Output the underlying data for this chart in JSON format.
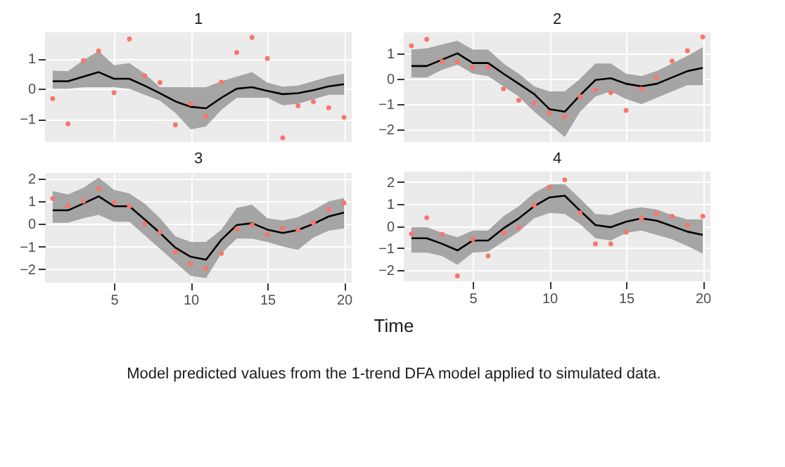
{
  "chart_data": [
    {
      "type": "line",
      "title": "1",
      "x": [
        1,
        2,
        3,
        4,
        5,
        6,
        7,
        8,
        9,
        10,
        11,
        12,
        13,
        14,
        15,
        16,
        17,
        18,
        19,
        20
      ],
      "xlim": [
        0.5,
        20.5
      ],
      "xticks": [
        5,
        10,
        15,
        20
      ],
      "ylim": [
        -1.77,
        1.87
      ],
      "yticks": [
        -1,
        0,
        1
      ],
      "grid": true,
      "tick_labels": "y",
      "series": [
        {
          "color": "#000000",
          "values": [
            0.25,
            0.25,
            0.4,
            0.55,
            0.33,
            0.33,
            0.1,
            -0.15,
            -0.42,
            -0.6,
            -0.65,
            -0.3,
            0,
            0.05,
            -0.07,
            -0.18,
            -0.15,
            -0.05,
            0.08,
            0.15
          ],
          "lower": [
            0,
            0,
            0.05,
            0.05,
            0.05,
            0,
            -0.2,
            -0.4,
            -0.8,
            -1.35,
            -1.25,
            -0.7,
            -0.3,
            -0.3,
            -0.3,
            -0.55,
            -0.5,
            -0.35,
            -0.2,
            -0.2
          ],
          "upper": [
            0.6,
            0.58,
            0.95,
            1.25,
            0.78,
            0.85,
            0.5,
            0.05,
            0.05,
            0.05,
            0.05,
            0.25,
            0.4,
            0.55,
            0.2,
            0.07,
            0.1,
            0.25,
            0.4,
            0.5
          ]
        },
        {
          "type": "scatter",
          "color": "#f8766d",
          "values": [
            -0.33,
            -1.17,
            0.93,
            1.25,
            -0.13,
            1.65,
            0.43,
            0.2,
            -1.2,
            -0.5,
            -0.92,
            0.22,
            1.2,
            1.7,
            1.0,
            -1.63,
            -0.57,
            -0.43,
            -0.63,
            -0.95
          ]
        }
      ]
    },
    {
      "type": "line",
      "title": "2",
      "x": [
        1,
        2,
        3,
        4,
        5,
        6,
        7,
        8,
        9,
        10,
        11,
        12,
        13,
        14,
        15,
        16,
        17,
        18,
        19,
        20
      ],
      "xlim": [
        0.5,
        20.5
      ],
      "xticks": [
        5,
        10,
        15,
        20
      ],
      "ylim": [
        -2.5,
        1.83
      ],
      "yticks": [
        -2,
        -1,
        0,
        1
      ],
      "grid": true,
      "tick_labels": "y",
      "series": [
        {
          "color": "#000000",
          "values": [
            0.5,
            0.5,
            0.75,
            1.0,
            0.62,
            0.62,
            0.2,
            -0.2,
            -0.6,
            -1.2,
            -1.3,
            -0.65,
            -0.05,
            0.02,
            -0.2,
            -0.3,
            -0.2,
            0.05,
            0.3,
            0.43
          ],
          "lower": [
            0.05,
            0.05,
            0.35,
            0.55,
            0.2,
            0.1,
            -0.3,
            -0.7,
            -1.3,
            -1.8,
            -2.3,
            -1.3,
            -0.7,
            -0.5,
            -0.8,
            -1.0,
            -0.75,
            -0.5,
            -0.25,
            -0.25
          ],
          "upper": [
            1.15,
            1.2,
            1.35,
            1.5,
            1.15,
            1.15,
            0.6,
            0.2,
            -0.3,
            -0.5,
            -0.5,
            0,
            0.6,
            0.6,
            0.2,
            0.1,
            0.3,
            0.6,
            0.9,
            1.25
          ]
        },
        {
          "type": "scatter",
          "color": "#f8766d",
          "values": [
            1.3,
            1.55,
            0.68,
            0.65,
            0.45,
            0.45,
            -0.4,
            -0.85,
            -0.95,
            -1.35,
            -1.5,
            -0.7,
            -0.45,
            -0.55,
            -1.25,
            -0.4,
            0.05,
            0.7,
            1.1,
            1.65
          ]
        }
      ]
    },
    {
      "type": "line",
      "title": "3",
      "x": [
        1,
        2,
        3,
        4,
        5,
        6,
        7,
        8,
        9,
        10,
        11,
        12,
        13,
        14,
        15,
        16,
        17,
        18,
        19,
        20
      ],
      "xlim": [
        0.5,
        20.5
      ],
      "xticks": [
        5,
        10,
        15,
        20
      ],
      "ylim": [
        -2.6,
        2.25
      ],
      "yticks": [
        -2,
        -1,
        0,
        1,
        2
      ],
      "grid": true,
      "series": [
        {
          "color": "#000000",
          "values": [
            0.6,
            0.6,
            0.9,
            1.22,
            0.78,
            0.78,
            0.2,
            -0.4,
            -1.05,
            -1.45,
            -1.58,
            -0.7,
            -0.05,
            0.03,
            -0.25,
            -0.4,
            -0.27,
            0,
            0.33,
            0.5
          ],
          "lower": [
            0.05,
            0.05,
            0.25,
            0.4,
            0.1,
            0.1,
            -0.5,
            -1.1,
            -1.7,
            -2.3,
            -2.4,
            -1.3,
            -0.65,
            -0.65,
            -0.8,
            -1.0,
            -1.15,
            -0.6,
            -0.3,
            -0.2
          ],
          "upper": [
            1.45,
            1.3,
            1.6,
            2.05,
            1.5,
            1.35,
            0.9,
            0.25,
            -0.55,
            -0.8,
            -0.8,
            -0.25,
            0.7,
            0.85,
            0.25,
            0.15,
            0.3,
            0.6,
            1.0,
            1.15
          ]
        },
        {
          "type": "scatter",
          "color": "#f8766d",
          "values": [
            1.12,
            0.8,
            1.0,
            1.55,
            0.95,
            0.78,
            0,
            -0.37,
            -1.25,
            -1.75,
            -1.97,
            -1.3,
            -0.22,
            -0.05,
            -0.47,
            -0.2,
            -0.27,
            0.05,
            0.65,
            0.93
          ]
        }
      ]
    },
    {
      "type": "line",
      "title": "4",
      "xlabel": "Time",
      "annotations": [
        "Model predicted values from the 1-trend DFA model applied to simulated data."
      ],
      "x": [
        1,
        2,
        3,
        4,
        5,
        6,
        7,
        8,
        9,
        10,
        11,
        12,
        13,
        14,
        15,
        16,
        17,
        18,
        19,
        20
      ],
      "xlim": [
        0.5,
        20.5
      ],
      "xticks": [
        5,
        10,
        15,
        20
      ],
      "ylim": [
        -2.5,
        2.47
      ],
      "yticks": [
        -2,
        -1,
        0,
        1,
        2
      ],
      "grid": true,
      "series": [
        {
          "color": "#000000",
          "values": [
            -0.55,
            -0.55,
            -0.8,
            -1.1,
            -0.65,
            -0.65,
            -0.1,
            0.35,
            0.9,
            1.3,
            1.38,
            0.7,
            0.05,
            -0.05,
            0.2,
            0.35,
            0.25,
            0,
            -0.25,
            -0.4
          ],
          "lower": [
            -1.2,
            -1.2,
            -1.35,
            -1.75,
            -1.2,
            -1.15,
            -0.7,
            -0.25,
            0.35,
            0.6,
            0.55,
            0.1,
            -0.55,
            -0.65,
            -0.3,
            -0.2,
            -0.4,
            -0.6,
            -0.9,
            -1.25
          ],
          "upper": [
            -0.05,
            -0.05,
            -0.3,
            -0.5,
            -0.2,
            -0.2,
            0.45,
            0.9,
            1.5,
            1.9,
            1.9,
            1.25,
            0.55,
            0.5,
            0.75,
            0.85,
            0.75,
            0.5,
            0.3,
            0.3
          ]
        },
        {
          "type": "scatter",
          "color": "#f8766d",
          "values": [
            -0.35,
            0.38,
            -0.37,
            -2.25,
            -0.6,
            -1.35,
            -0.3,
            -0.07,
            0.95,
            1.75,
            2.1,
            0.6,
            -0.8,
            -0.8,
            -0.28,
            0.35,
            0.57,
            0.45,
            0.05,
            0.45
          ]
        }
      ]
    }
  ]
}
